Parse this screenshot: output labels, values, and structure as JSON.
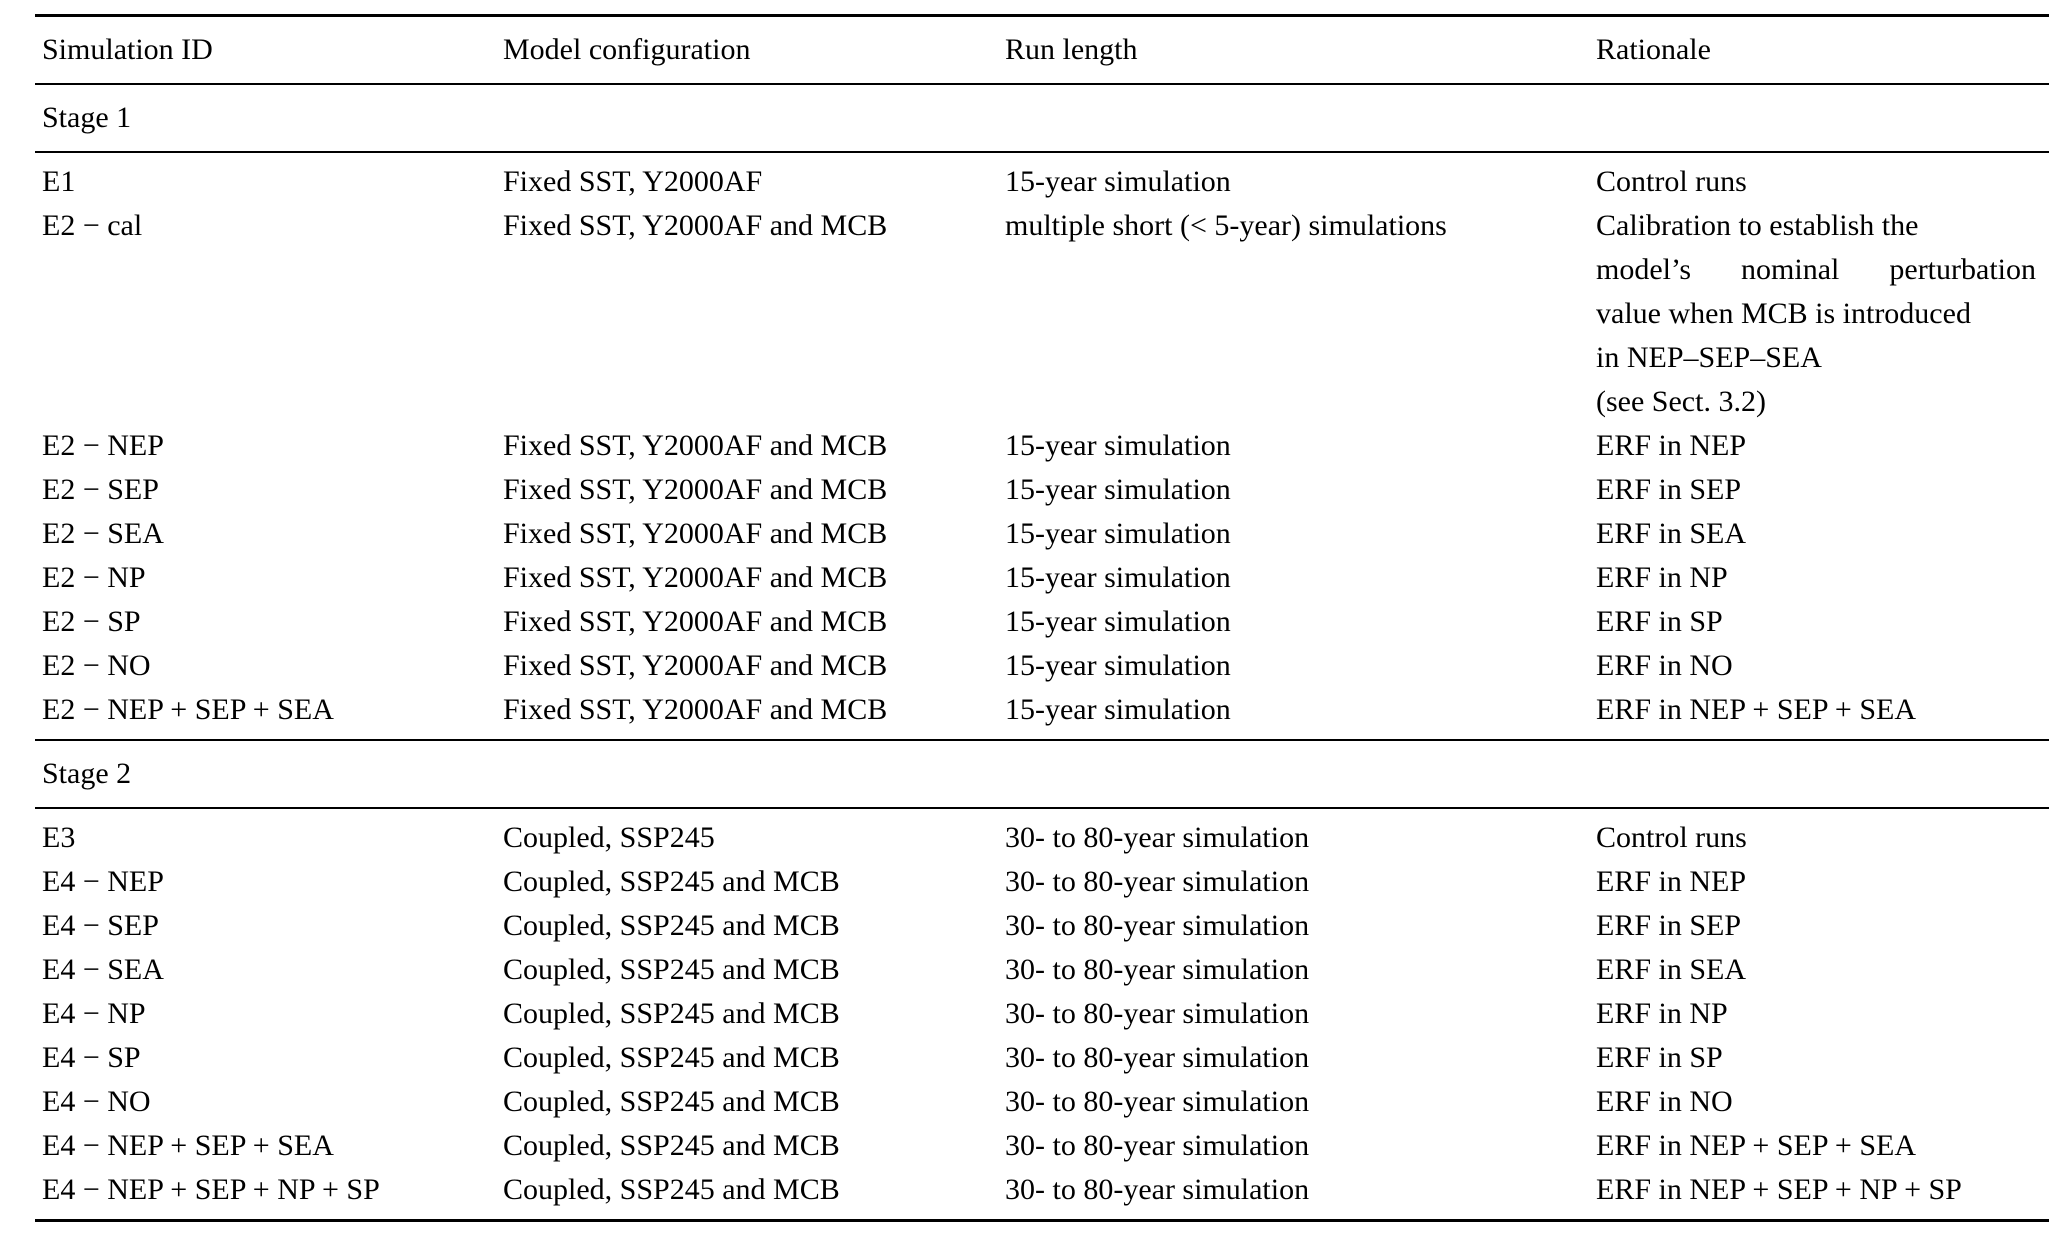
{
  "page": {
    "background_color": "#ffffff",
    "text_color": "#000000",
    "rule_color": "#000000"
  },
  "table": {
    "columns": [
      "Simulation ID",
      "Model configuration",
      "Run length",
      "Rationale"
    ],
    "sections": [
      {
        "label": "Stage 1",
        "rows": [
          {
            "sim_id": "E1",
            "model_config": "Fixed SST, Y2000AF",
            "run_length": "15-year simulation",
            "rationale": "Control runs"
          },
          {
            "sim_id": "E2 − cal",
            "model_config": "Fixed SST, Y2000AF and MCB",
            "run_length": "multiple short (< 5-year) simulations",
            "rationale_lines": [
              "Calibration to establish the",
              "model’s nominal perturbation",
              "value when MCB is introduced",
              "in NEP–SEP–SEA",
              "(see Sect. 3.2)"
            ]
          },
          {
            "sim_id": "E2 − NEP",
            "model_config": "Fixed SST, Y2000AF and MCB",
            "run_length": "15-year simulation",
            "rationale": "ERF in NEP"
          },
          {
            "sim_id": "E2 − SEP",
            "model_config": "Fixed SST, Y2000AF and MCB",
            "run_length": "15-year simulation",
            "rationale": "ERF in SEP"
          },
          {
            "sim_id": "E2 − SEA",
            "model_config": "Fixed SST, Y2000AF and MCB",
            "run_length": "15-year simulation",
            "rationale": "ERF in SEA"
          },
          {
            "sim_id": "E2 − NP",
            "model_config": "Fixed SST, Y2000AF and MCB",
            "run_length": "15-year simulation",
            "rationale": "ERF in NP"
          },
          {
            "sim_id": "E2 − SP",
            "model_config": "Fixed SST, Y2000AF and MCB",
            "run_length": "15-year simulation",
            "rationale": "ERF in SP"
          },
          {
            "sim_id": "E2 − NO",
            "model_config": "Fixed SST, Y2000AF and MCB",
            "run_length": "15-year simulation",
            "rationale": "ERF in NO"
          },
          {
            "sim_id": "E2 − NEP + SEP + SEA",
            "model_config": "Fixed SST, Y2000AF and MCB",
            "run_length": "15-year simulation",
            "rationale": "ERF in NEP + SEP + SEA"
          }
        ]
      },
      {
        "label": "Stage 2",
        "rows": [
          {
            "sim_id": "E3",
            "model_config": "Coupled, SSP245",
            "run_length": "30- to 80-year simulation",
            "rationale": "Control runs"
          },
          {
            "sim_id": "E4 − NEP",
            "model_config": "Coupled, SSP245 and MCB",
            "run_length": "30- to 80-year simulation",
            "rationale": "ERF in NEP"
          },
          {
            "sim_id": "E4 − SEP",
            "model_config": "Coupled, SSP245 and MCB",
            "run_length": "30- to 80-year simulation",
            "rationale": "ERF in SEP"
          },
          {
            "sim_id": "E4 − SEA",
            "model_config": "Coupled, SSP245 and MCB",
            "run_length": "30- to 80-year simulation",
            "rationale": "ERF in SEA"
          },
          {
            "sim_id": "E4 − NP",
            "model_config": "Coupled, SSP245 and MCB",
            "run_length": "30- to 80-year simulation",
            "rationale": "ERF in NP"
          },
          {
            "sim_id": "E4 − SP",
            "model_config": "Coupled, SSP245 and MCB",
            "run_length": "30- to 80-year simulation",
            "rationale": "ERF in SP"
          },
          {
            "sim_id": "E4 − NO",
            "model_config": "Coupled, SSP245 and MCB",
            "run_length": "30- to 80-year simulation",
            "rationale": "ERF in NO"
          },
          {
            "sim_id": "E4 − NEP + SEP + SEA",
            "model_config": "Coupled, SSP245 and MCB",
            "run_length": "30- to 80-year simulation",
            "rationale": "ERF in NEP + SEP + SEA"
          },
          {
            "sim_id": "E4 − NEP + SEP + NP + SP",
            "model_config": "Coupled, SSP245 and MCB",
            "run_length": "30- to 80-year simulation",
            "rationale": "ERF in NEP + SEP + NP + SP"
          }
        ]
      }
    ]
  }
}
